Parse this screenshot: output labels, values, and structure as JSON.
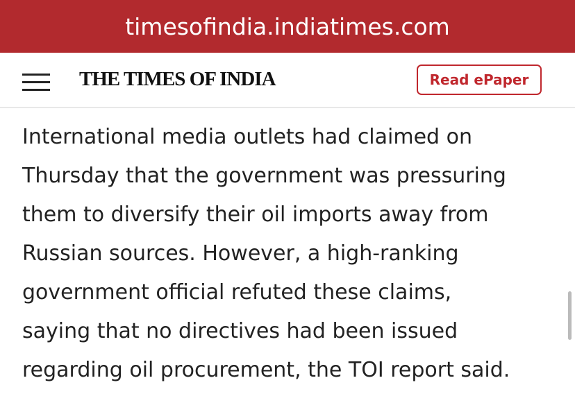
{
  "browser": {
    "url": "timesofindia.indiatimes.com"
  },
  "header": {
    "logo": "THE TIMES OF INDIA",
    "button": "Read ePaper"
  },
  "article": {
    "lines": [
      "International media outlets had claimed on",
      "Thursday that the government was pressuring",
      "them to diversify their oil imports away from",
      "Russian sources. However, a high-ranking",
      "government official refuted these claims,",
      "saying that no directives had been issued",
      "regarding oil procurement, the TOI report said."
    ]
  }
}
